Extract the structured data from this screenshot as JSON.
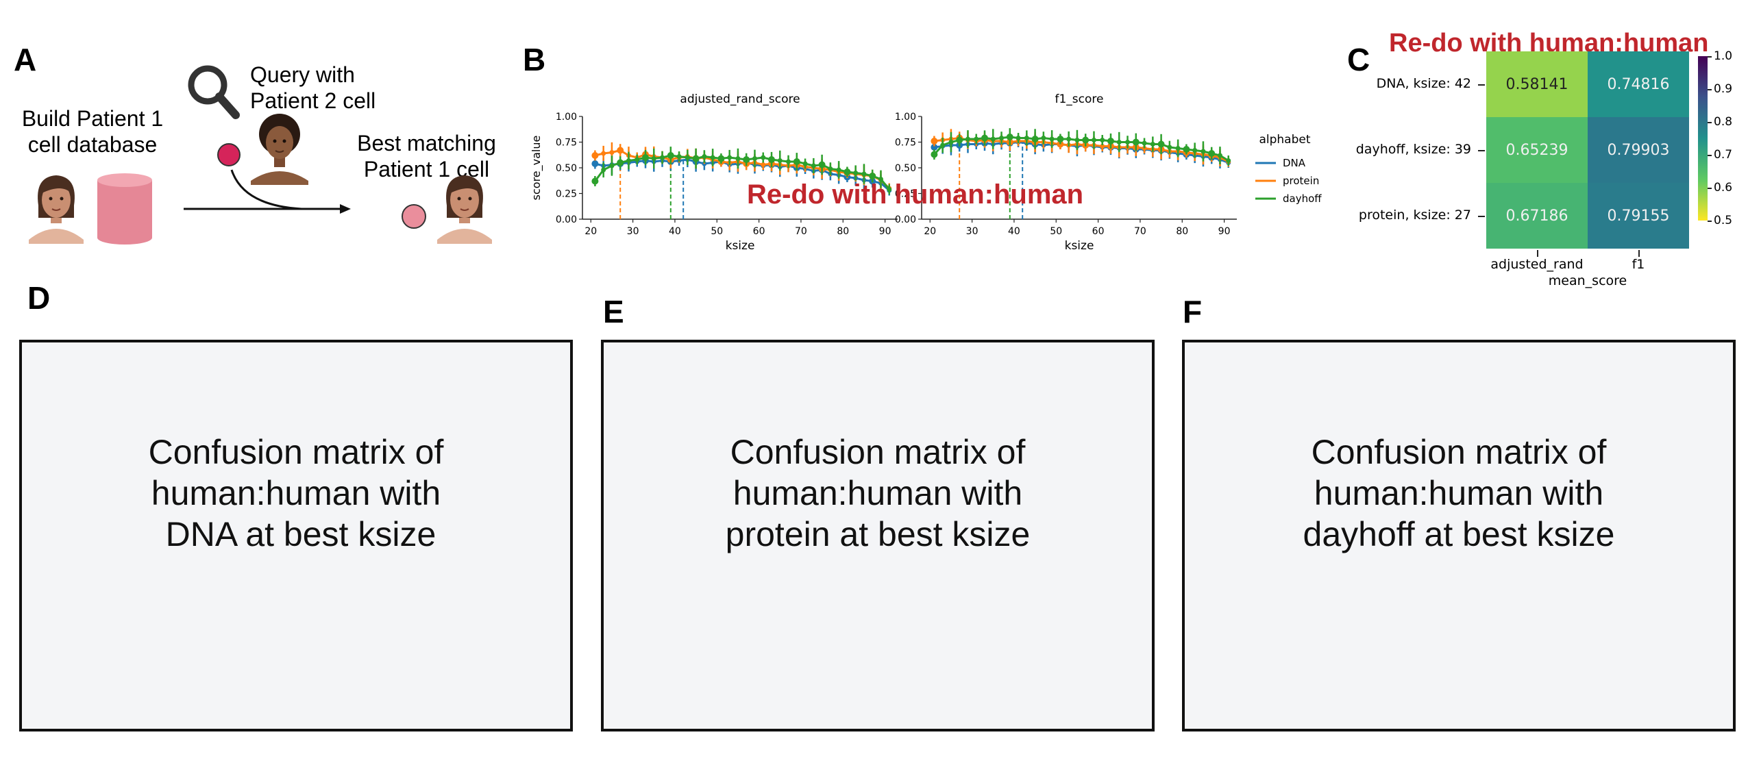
{
  "panels": {
    "a": "A",
    "b": "B",
    "c": "C",
    "d": "D",
    "e": "E",
    "f": "F"
  },
  "panel_a": {
    "build_line1": "Build Patient 1",
    "build_line2": "cell database",
    "query_line1": "Query with",
    "query_line2": "Patient 2 cell",
    "best_line1": "Best matching",
    "best_line2": "Patient 1 cell"
  },
  "annotations": {
    "redo_b": "Re-do with human:human",
    "redo_c": "Re-do with human:human"
  },
  "legend": {
    "title": "alphabet",
    "items": [
      {
        "label": "DNA",
        "color": "#1f77b4"
      },
      {
        "label": "protein",
        "color": "#ff7f0e"
      },
      {
        "label": "dayhoff",
        "color": "#2ca02c"
      }
    ]
  },
  "chart_data": [
    {
      "type": "line",
      "title": "adjusted_rand_score",
      "xlabel": "ksize",
      "ylabel": "score_value",
      "xlim": [
        18,
        93
      ],
      "ylim": [
        0,
        1
      ],
      "xticks": [
        20,
        30,
        40,
        50,
        60,
        70,
        80,
        90
      ],
      "yticks": [
        "0.00",
        "0.25",
        "0.50",
        "0.75",
        "1.00"
      ],
      "x": [
        21,
        23,
        25,
        27,
        29,
        31,
        33,
        35,
        37,
        39,
        41,
        43,
        45,
        47,
        49,
        51,
        53,
        55,
        57,
        59,
        61,
        63,
        65,
        67,
        69,
        71,
        73,
        75,
        77,
        79,
        81,
        83,
        85,
        87,
        89,
        91
      ],
      "series": [
        {
          "name": "DNA",
          "color": "#1f77b4",
          "values": [
            0.54,
            0.52,
            0.53,
            0.54,
            0.55,
            0.56,
            0.57,
            0.56,
            0.57,
            0.56,
            0.57,
            0.58,
            0.56,
            0.54,
            0.55,
            0.56,
            0.53,
            0.54,
            0.55,
            0.53,
            0.52,
            0.53,
            0.51,
            0.52,
            0.5,
            0.49,
            0.47,
            0.48,
            0.44,
            0.43,
            0.41,
            0.4,
            0.38,
            0.37,
            0.35,
            0.28
          ],
          "best_x": 42
        },
        {
          "name": "protein",
          "color": "#ff7f0e",
          "values": [
            0.62,
            0.64,
            0.65,
            0.67,
            0.62,
            0.6,
            0.63,
            0.61,
            0.6,
            0.58,
            0.6,
            0.61,
            0.59,
            0.6,
            0.58,
            0.56,
            0.55,
            0.56,
            0.54,
            0.55,
            0.53,
            0.54,
            0.53,
            0.52,
            0.53,
            0.51,
            0.5,
            0.49,
            0.48,
            0.46,
            0.45,
            0.44,
            0.43,
            0.42,
            0.38,
            0.3
          ],
          "best_x": 27
        },
        {
          "name": "dayhoff",
          "color": "#2ca02c",
          "values": [
            0.37,
            0.48,
            0.52,
            0.55,
            0.57,
            0.58,
            0.6,
            0.59,
            0.6,
            0.62,
            0.61,
            0.6,
            0.59,
            0.61,
            0.6,
            0.59,
            0.6,
            0.59,
            0.58,
            0.59,
            0.6,
            0.58,
            0.57,
            0.56,
            0.56,
            0.54,
            0.52,
            0.53,
            0.49,
            0.48,
            0.46,
            0.45,
            0.44,
            0.42,
            0.39,
            0.29
          ],
          "best_x": 39
        }
      ]
    },
    {
      "type": "line",
      "title": "f1_score",
      "xlabel": "ksize",
      "ylabel": "",
      "xlim": [
        18,
        93
      ],
      "ylim": [
        0,
        1
      ],
      "xticks": [
        20,
        30,
        40,
        50,
        60,
        70,
        80,
        90
      ],
      "yticks": [
        "0.00",
        "0.25",
        "0.50",
        "0.75",
        "1.00"
      ],
      "x": [
        21,
        23,
        25,
        27,
        29,
        31,
        33,
        35,
        37,
        39,
        41,
        43,
        45,
        47,
        49,
        51,
        53,
        55,
        57,
        59,
        61,
        63,
        65,
        67,
        69,
        71,
        73,
        75,
        77,
        79,
        81,
        83,
        85,
        87,
        89,
        91
      ],
      "series": [
        {
          "name": "DNA",
          "color": "#1f77b4",
          "values": [
            0.7,
            0.71,
            0.72,
            0.72,
            0.73,
            0.73,
            0.74,
            0.73,
            0.74,
            0.74,
            0.75,
            0.74,
            0.73,
            0.72,
            0.73,
            0.73,
            0.72,
            0.71,
            0.72,
            0.71,
            0.7,
            0.7,
            0.69,
            0.69,
            0.68,
            0.68,
            0.67,
            0.67,
            0.65,
            0.64,
            0.63,
            0.62,
            0.61,
            0.6,
            0.58,
            0.55
          ],
          "best_x": 42
        },
        {
          "name": "protein",
          "color": "#ff7f0e",
          "values": [
            0.76,
            0.77,
            0.78,
            0.79,
            0.77,
            0.76,
            0.77,
            0.76,
            0.76,
            0.75,
            0.76,
            0.76,
            0.75,
            0.75,
            0.74,
            0.73,
            0.72,
            0.73,
            0.72,
            0.72,
            0.71,
            0.71,
            0.7,
            0.7,
            0.7,
            0.69,
            0.68,
            0.68,
            0.66,
            0.66,
            0.65,
            0.64,
            0.63,
            0.62,
            0.6,
            0.56
          ],
          "best_x": 27
        },
        {
          "name": "dayhoff",
          "color": "#2ca02c",
          "values": [
            0.63,
            0.72,
            0.75,
            0.77,
            0.78,
            0.78,
            0.79,
            0.78,
            0.79,
            0.8,
            0.79,
            0.79,
            0.78,
            0.79,
            0.78,
            0.78,
            0.78,
            0.77,
            0.77,
            0.77,
            0.77,
            0.76,
            0.75,
            0.75,
            0.75,
            0.74,
            0.73,
            0.73,
            0.7,
            0.69,
            0.68,
            0.67,
            0.66,
            0.64,
            0.62,
            0.57
          ],
          "best_x": 39
        }
      ]
    },
    {
      "type": "heatmap",
      "xlabel": "mean_score",
      "columns": [
        "adjusted_rand",
        "f1"
      ],
      "rows": [
        "DNA, ksize: 42",
        "dayhoff, ksize: 39",
        "protein, ksize: 27"
      ],
      "values": [
        [
          0.58141,
          0.74816
        ],
        [
          0.65239,
          0.79903
        ],
        [
          0.67186,
          0.79155
        ]
      ],
      "value_labels": [
        [
          "0.58141",
          "0.74816"
        ],
        [
          "0.65239",
          "0.79903"
        ],
        [
          "0.67186",
          "0.79155"
        ]
      ],
      "colorbar": {
        "range": [
          0.5,
          1.0
        ],
        "ticks": [
          "1.0",
          "0.9",
          "0.8",
          "0.7",
          "0.6",
          "0.5"
        ],
        "cmap": "viridis_r"
      }
    }
  ],
  "placeholders": {
    "d": [
      "Confusion matrix of",
      "human:human with",
      " DNA at best ksize"
    ],
    "e": [
      "Confusion matrix of",
      "human:human with",
      "protein at best ksize"
    ],
    "f": [
      "Confusion matrix of",
      "human:human with",
      "dayhoff at best ksize"
    ]
  }
}
